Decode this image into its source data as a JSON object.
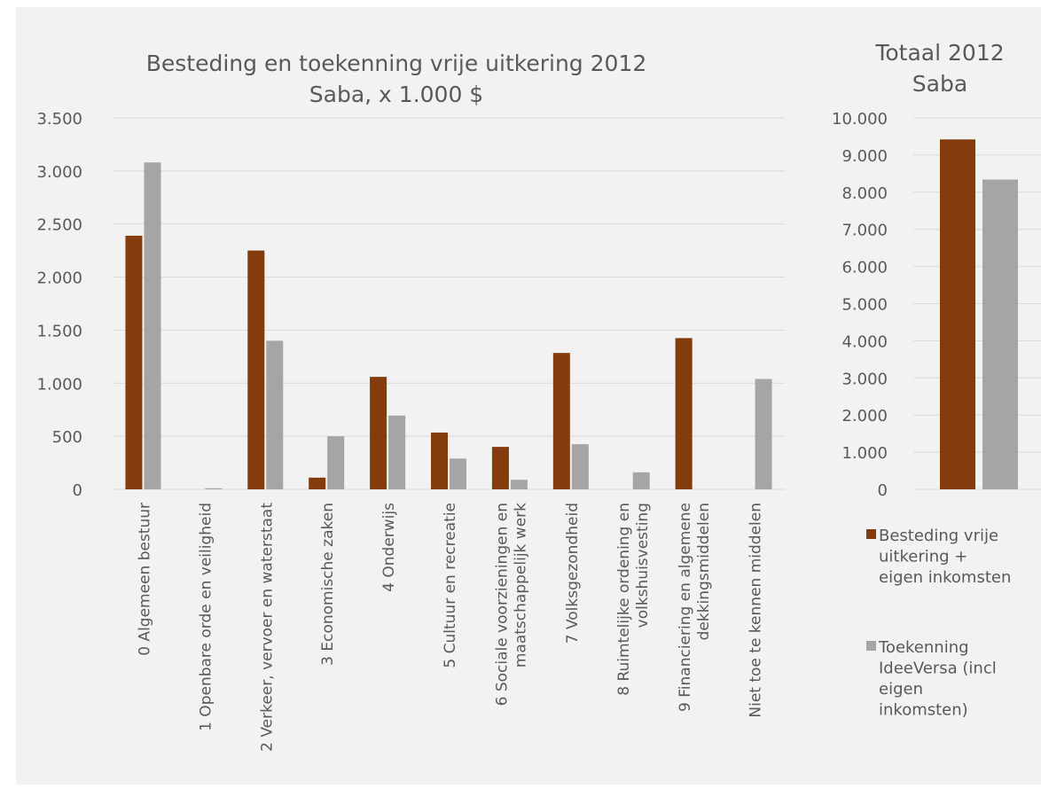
{
  "colors": {
    "panel": "#f2f2f2",
    "grid": "#d9d9d9",
    "text": "#595959",
    "series_besteding": "#843c0c",
    "series_toekenning": "#a5a5a5"
  },
  "chart_data": [
    {
      "type": "bar",
      "title_lines": [
        "Besteding en toekenning vrije uitkering 2012",
        "Saba, x 1.000 $"
      ],
      "categories": [
        [
          "0 Algemeen bestuur"
        ],
        [
          "1 Openbare orde en veiligheid"
        ],
        [
          "2 Verkeer,  vervoer en waterstaat"
        ],
        [
          "3 Economische zaken"
        ],
        [
          "4 Onderwijs"
        ],
        [
          "5 Cultuur en recreatie"
        ],
        [
          "6 Sociale voorzieningen en",
          "maatschappelijk werk"
        ],
        [
          "7 Volksgezondheid"
        ],
        [
          "8 Ruimtelijke ordening en",
          "volkshuisvesting"
        ],
        [
          "9 Financiering en algemene",
          "dekkingsmiddelen"
        ],
        [
          "Niet toe te kennen middelen"
        ]
      ],
      "series": [
        {
          "values": [
            2390,
            0,
            2250,
            110,
            1060,
            535,
            400,
            1285,
            0,
            1425,
            0
          ]
        },
        {
          "values": [
            3080,
            10,
            1400,
            500,
            695,
            290,
            90,
            425,
            160,
            0,
            1040
          ]
        }
      ],
      "ylim": [
        0,
        3500
      ],
      "yticks": [
        0,
        500,
        1000,
        1500,
        2000,
        2500,
        3000,
        3500
      ],
      "ytick_labels": [
        "0",
        "500",
        "1.000",
        "1.500",
        "2.000",
        "2.500",
        "3.000",
        "3.500"
      ],
      "grid": true
    },
    {
      "type": "bar",
      "title_lines": [
        "Totaal 2012",
        "Saba"
      ],
      "categories": [
        ""
      ],
      "series": [
        {
          "name": "Besteding vrije uitkering + eigen inkomsten",
          "values": [
            9420
          ]
        },
        {
          "name": "Toekenning IdeeVersa (incl eigen inkomsten)",
          "values": [
            8340
          ]
        }
      ],
      "ylim": [
        0,
        10000
      ],
      "yticks": [
        0,
        1000,
        2000,
        3000,
        4000,
        5000,
        6000,
        7000,
        8000,
        9000,
        10000
      ],
      "ytick_labels": [
        "0",
        "1.000",
        "2.000",
        "3.000",
        "4.000",
        "5.000",
        "6.000",
        "7.000",
        "8.000",
        "9.000",
        "10.000"
      ],
      "grid": true,
      "legend_position": "bottom",
      "legend_lines": [
        [
          "Besteding vrije",
          "uitkering +",
          "eigen inkomsten"
        ],
        [
          "Toekenning",
          "IdeeVersa (incl",
          "eigen",
          "inkomsten)"
        ]
      ]
    }
  ]
}
